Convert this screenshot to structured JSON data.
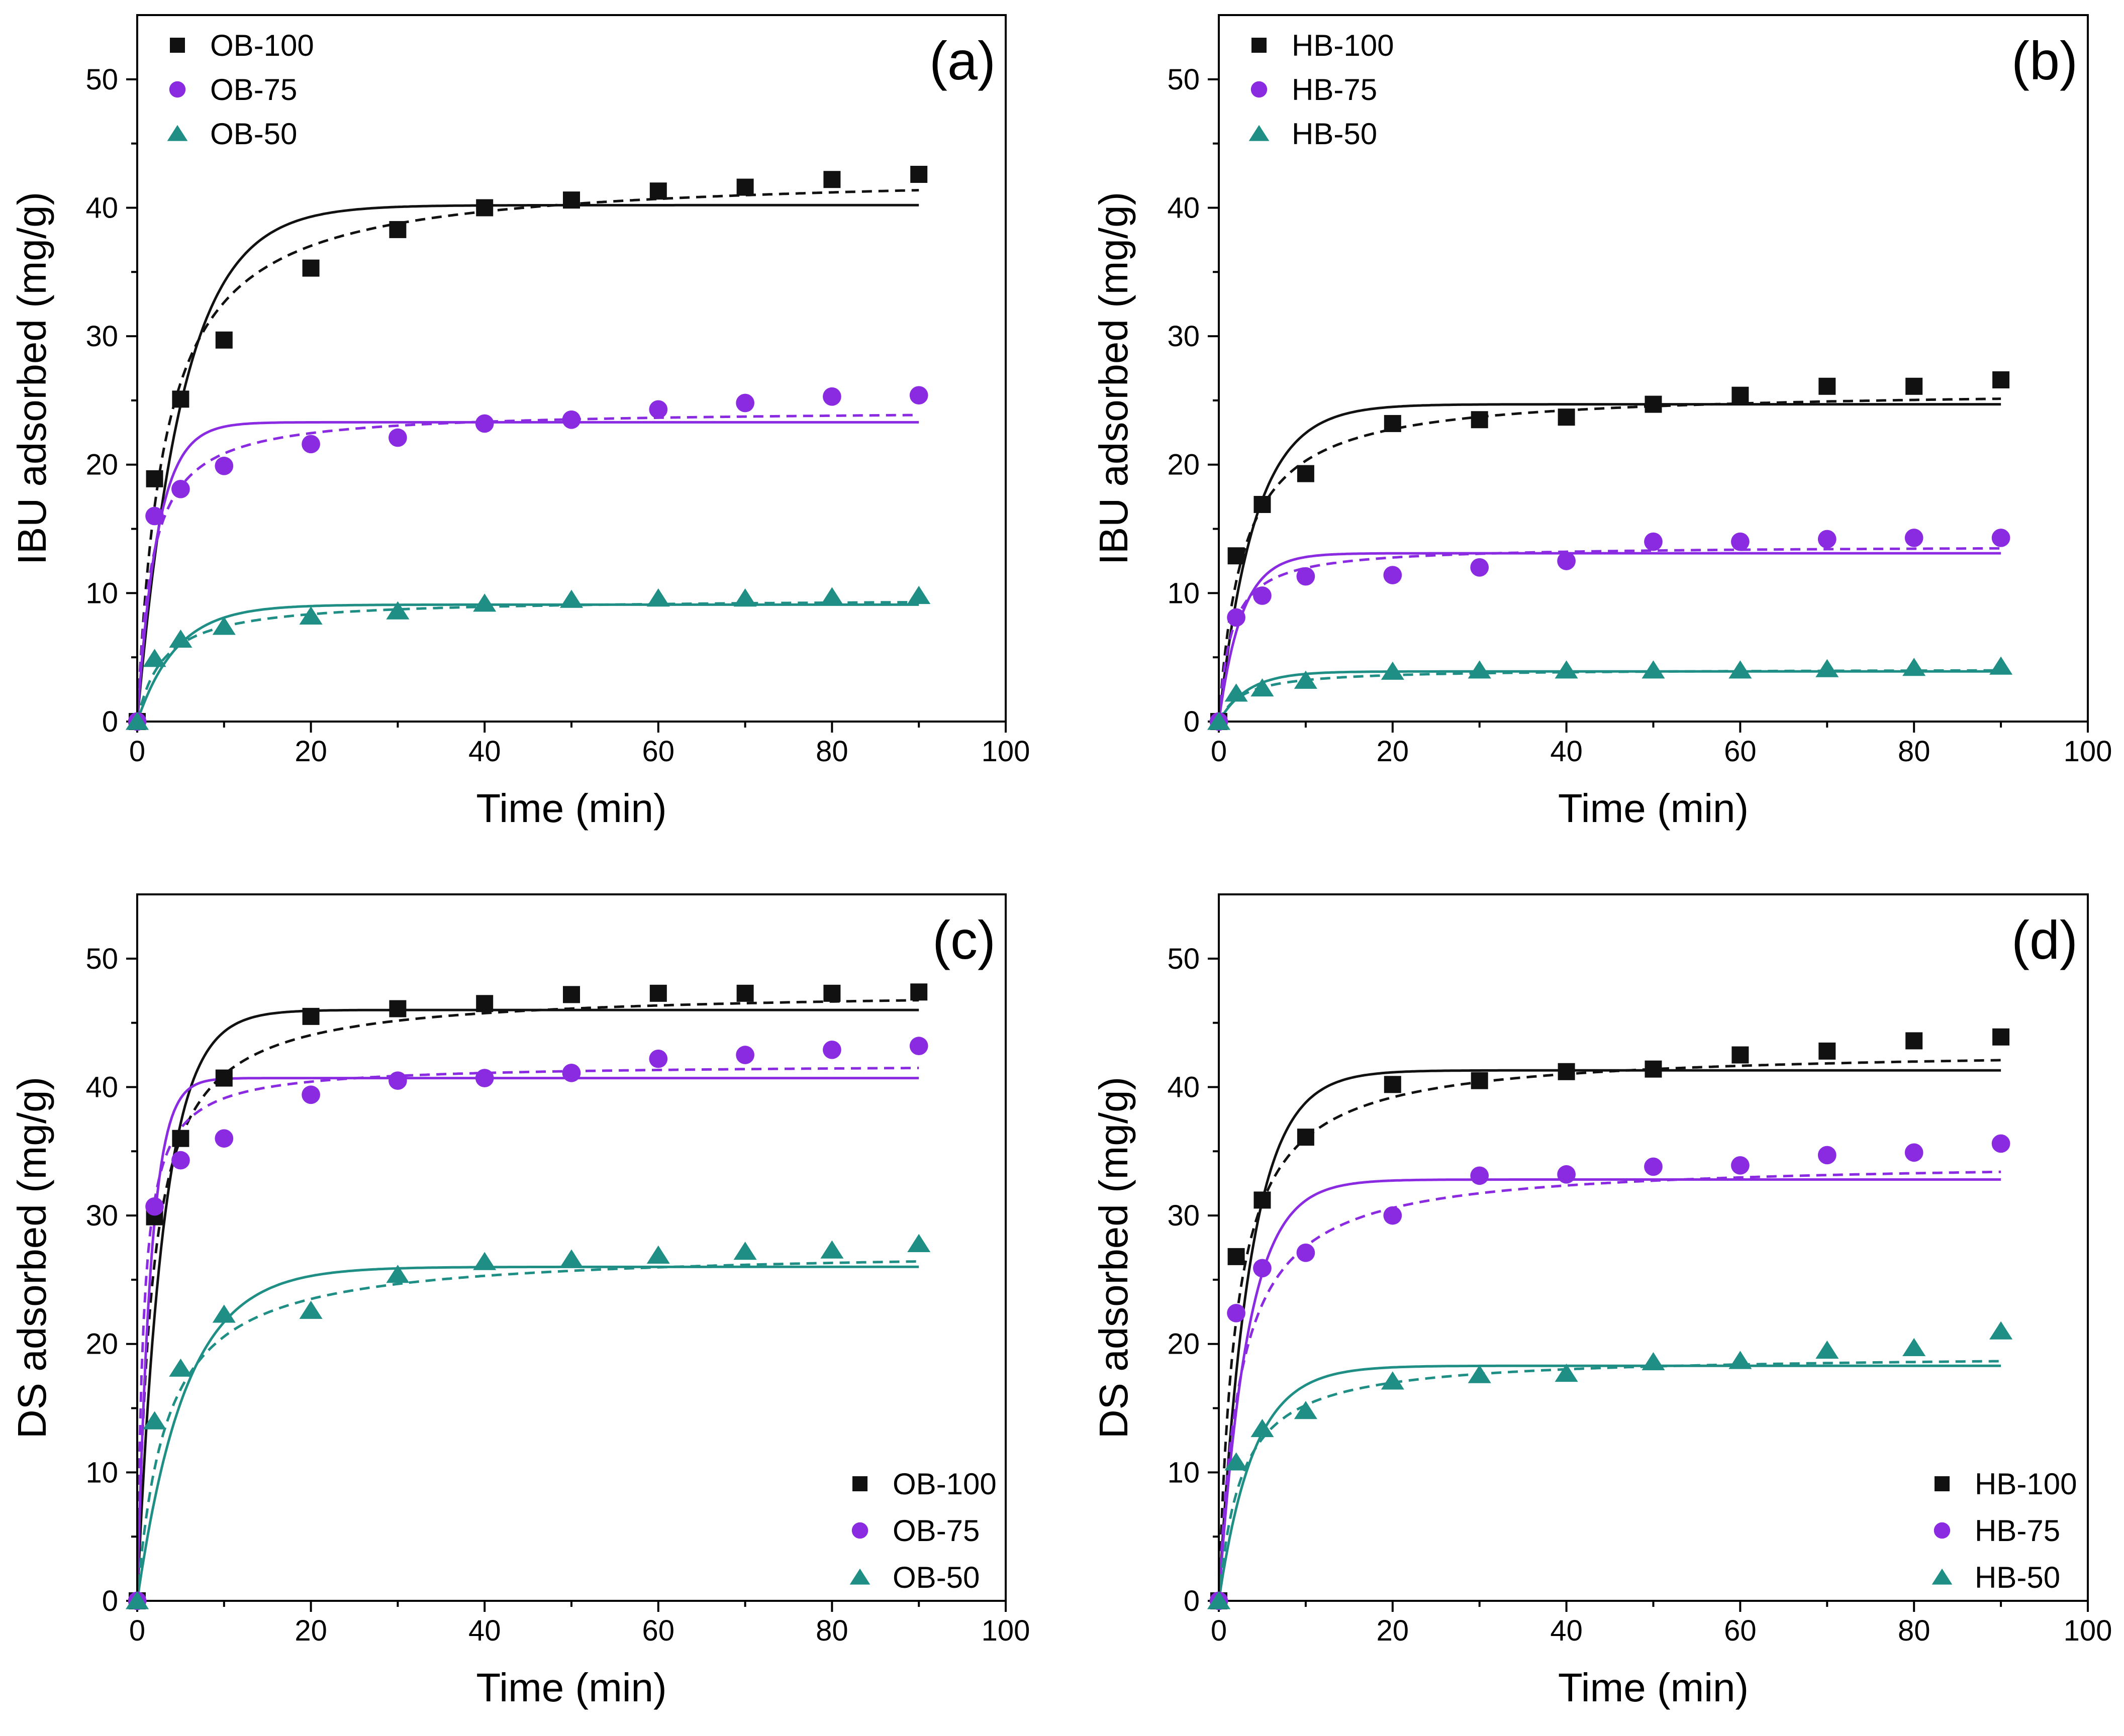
{
  "figure": {
    "panel_count": 4
  },
  "chart_data": [
    {
      "type": "scatter",
      "panel_label": "(a)",
      "xlabel": "Time (min)",
      "ylabel": "IBU adsorbed (mg/g)",
      "xlim": [
        0,
        100
      ],
      "ylim": [
        0,
        55
      ],
      "xticks": [
        0,
        20,
        40,
        60,
        80,
        100
      ],
      "yticks": [
        0,
        10,
        20,
        30,
        40,
        50
      ],
      "legend_position": "top-left",
      "series": [
        {
          "name": "OB-100",
          "marker": "square",
          "color": "#111111",
          "x": [
            0,
            2,
            5,
            10,
            20,
            30,
            40,
            50,
            60,
            70,
            80,
            90
          ],
          "y": [
            0,
            18.9,
            25.1,
            29.7,
            35.3,
            38.3,
            40.0,
            40.6,
            41.3,
            41.6,
            42.2,
            42.6
          ],
          "fit_solid": {
            "qe": 40.2,
            "k": 0.19
          },
          "fit_dashed": {
            "qe": 42.8,
            "k": 0.0075
          }
        },
        {
          "name": "OB-75",
          "marker": "circle",
          "color": "#8a2be2",
          "x": [
            0,
            2,
            5,
            10,
            20,
            30,
            40,
            50,
            60,
            70,
            80,
            90
          ],
          "y": [
            0,
            16.0,
            18.1,
            19.9,
            21.6,
            22.1,
            23.2,
            23.5,
            24.3,
            24.8,
            25.3,
            25.4
          ],
          "fit_solid": {
            "qe": 23.3,
            "k": 0.42
          },
          "fit_dashed": {
            "qe": 24.3,
            "k": 0.025
          }
        },
        {
          "name": "OB-50",
          "marker": "triangle",
          "color": "#1f8f86",
          "x": [
            0,
            2,
            5,
            10,
            20,
            30,
            40,
            50,
            60,
            70,
            80,
            90
          ],
          "y": [
            0,
            4.9,
            6.4,
            7.4,
            8.2,
            8.6,
            9.2,
            9.5,
            9.6,
            9.6,
            9.7,
            9.8
          ],
          "fit_solid": {
            "qe": 9.1,
            "k": 0.22
          },
          "fit_dashed": {
            "qe": 9.6,
            "k": 0.035
          }
        }
      ]
    },
    {
      "type": "scatter",
      "panel_label": "(b)",
      "xlabel": "Time (min)",
      "ylabel": "IBU adsorbed (mg/g)",
      "xlim": [
        0,
        100
      ],
      "ylim": [
        0,
        55
      ],
      "xticks": [
        0,
        20,
        40,
        60,
        80,
        100
      ],
      "yticks": [
        0,
        10,
        20,
        30,
        40,
        50
      ],
      "legend_position": "top-left",
      "series": [
        {
          "name": "HB-100",
          "marker": "square",
          "color": "#111111",
          "x": [
            0,
            2,
            5,
            10,
            20,
            30,
            40,
            50,
            60,
            70,
            80,
            90
          ],
          "y": [
            0,
            12.9,
            16.9,
            19.3,
            23.2,
            23.5,
            23.7,
            24.7,
            25.4,
            26.1,
            26.1,
            26.6
          ],
          "fit_solid": {
            "qe": 24.7,
            "k": 0.24
          },
          "fit_dashed": {
            "qe": 25.9,
            "k": 0.014
          }
        },
        {
          "name": "HB-75",
          "marker": "circle",
          "color": "#8a2be2",
          "x": [
            0,
            2,
            5,
            10,
            20,
            30,
            40,
            50,
            60,
            70,
            80,
            90
          ],
          "y": [
            0,
            8.1,
            9.8,
            11.3,
            11.4,
            12.0,
            12.5,
            14.0,
            14.0,
            14.2,
            14.3,
            14.3
          ],
          "fit_solid": {
            "qe": 13.1,
            "k": 0.38
          },
          "fit_dashed": {
            "qe": 13.7,
            "k": 0.05
          }
        },
        {
          "name": "HB-50",
          "marker": "triangle",
          "color": "#1f8f86",
          "x": [
            0,
            2,
            5,
            10,
            20,
            30,
            40,
            50,
            60,
            70,
            80,
            90
          ],
          "y": [
            0,
            2.2,
            2.6,
            3.2,
            3.9,
            4.0,
            4.0,
            4.0,
            4.0,
            4.1,
            4.2,
            4.3
          ],
          "fit_solid": {
            "qe": 3.9,
            "k": 0.3
          },
          "fit_dashed": {
            "qe": 4.1,
            "k": 0.09
          }
        }
      ]
    },
    {
      "type": "scatter",
      "panel_label": "(c)",
      "xlabel": "Time (min)",
      "ylabel": "DS adsorbed (mg/g)",
      "xlim": [
        0,
        100
      ],
      "ylim": [
        0,
        55
      ],
      "xticks": [
        0,
        20,
        40,
        60,
        80,
        100
      ],
      "yticks": [
        0,
        10,
        20,
        30,
        40,
        50
      ],
      "legend_position": "bottom-right",
      "series": [
        {
          "name": "OB-100",
          "marker": "square",
          "color": "#111111",
          "x": [
            0,
            2,
            5,
            10,
            20,
            30,
            40,
            50,
            60,
            70,
            80,
            90
          ],
          "y": [
            0,
            29.9,
            36.0,
            40.7,
            45.5,
            46.1,
            46.5,
            47.2,
            47.3,
            47.3,
            47.3,
            47.4
          ],
          "fit_solid": {
            "qe": 46.0,
            "k": 0.33
          },
          "fit_dashed": {
            "qe": 47.6,
            "k": 0.013
          }
        },
        {
          "name": "OB-75",
          "marker": "circle",
          "color": "#8a2be2",
          "x": [
            0,
            2,
            5,
            10,
            20,
            30,
            40,
            50,
            60,
            70,
            80,
            90
          ],
          "y": [
            0,
            30.7,
            34.3,
            36.0,
            39.4,
            40.5,
            40.7,
            41.1,
            42.2,
            42.5,
            42.9,
            43.2
          ],
          "fit_solid": {
            "qe": 40.7,
            "k": 0.65
          },
          "fit_dashed": {
            "qe": 41.8,
            "k": 0.035
          }
        },
        {
          "name": "OB-50",
          "marker": "triangle",
          "color": "#1f8f86",
          "x": [
            0,
            2,
            5,
            10,
            20,
            30,
            40,
            50,
            60,
            70,
            80,
            90
          ],
          "y": [
            0,
            14.0,
            18.1,
            22.3,
            22.6,
            25.4,
            26.4,
            26.6,
            26.9,
            27.2,
            27.3,
            27.8
          ],
          "fit_solid": {
            "qe": 26.0,
            "k": 0.18
          },
          "fit_dashed": {
            "qe": 27.4,
            "k": 0.011
          }
        }
      ]
    },
    {
      "type": "scatter",
      "panel_label": "(d)",
      "xlabel": "Time (min)",
      "ylabel": "DS adsorbed (mg/g)",
      "xlim": [
        0,
        100
      ],
      "ylim": [
        0,
        55
      ],
      "xticks": [
        0,
        20,
        40,
        60,
        80,
        100
      ],
      "yticks": [
        0,
        10,
        20,
        30,
        40,
        50
      ],
      "legend_position": "bottom-right",
      "series": [
        {
          "name": "HB-100",
          "marker": "square",
          "color": "#111111",
          "x": [
            0,
            2,
            5,
            10,
            20,
            30,
            40,
            50,
            60,
            70,
            80,
            90
          ],
          "y": [
            0,
            26.8,
            31.2,
            36.1,
            40.2,
            40.5,
            41.2,
            41.4,
            42.5,
            42.8,
            43.6,
            43.9
          ],
          "fit_solid": {
            "qe": 41.3,
            "k": 0.28
          },
          "fit_dashed": {
            "qe": 43.0,
            "k": 0.012
          }
        },
        {
          "name": "HB-75",
          "marker": "circle",
          "color": "#8a2be2",
          "x": [
            0,
            2,
            5,
            10,
            20,
            30,
            40,
            50,
            60,
            70,
            80,
            90
          ],
          "y": [
            0,
            22.4,
            25.9,
            27.1,
            30.0,
            33.1,
            33.2,
            33.8,
            33.9,
            34.7,
            34.9,
            35.6
          ],
          "fit_solid": {
            "qe": 32.8,
            "k": 0.3
          },
          "fit_dashed": {
            "qe": 34.3,
            "k": 0.012
          }
        },
        {
          "name": "HB-50",
          "marker": "triangle",
          "color": "#1f8f86",
          "x": [
            0,
            2,
            5,
            10,
            20,
            30,
            40,
            50,
            60,
            70,
            80,
            90
          ],
          "y": [
            0,
            10.8,
            13.4,
            14.8,
            17.1,
            17.6,
            17.7,
            18.6,
            18.7,
            19.5,
            19.7,
            21.0
          ],
          "fit_solid": {
            "qe": 18.3,
            "k": 0.25
          },
          "fit_dashed": {
            "qe": 19.2,
            "k": 0.02
          }
        }
      ]
    }
  ]
}
